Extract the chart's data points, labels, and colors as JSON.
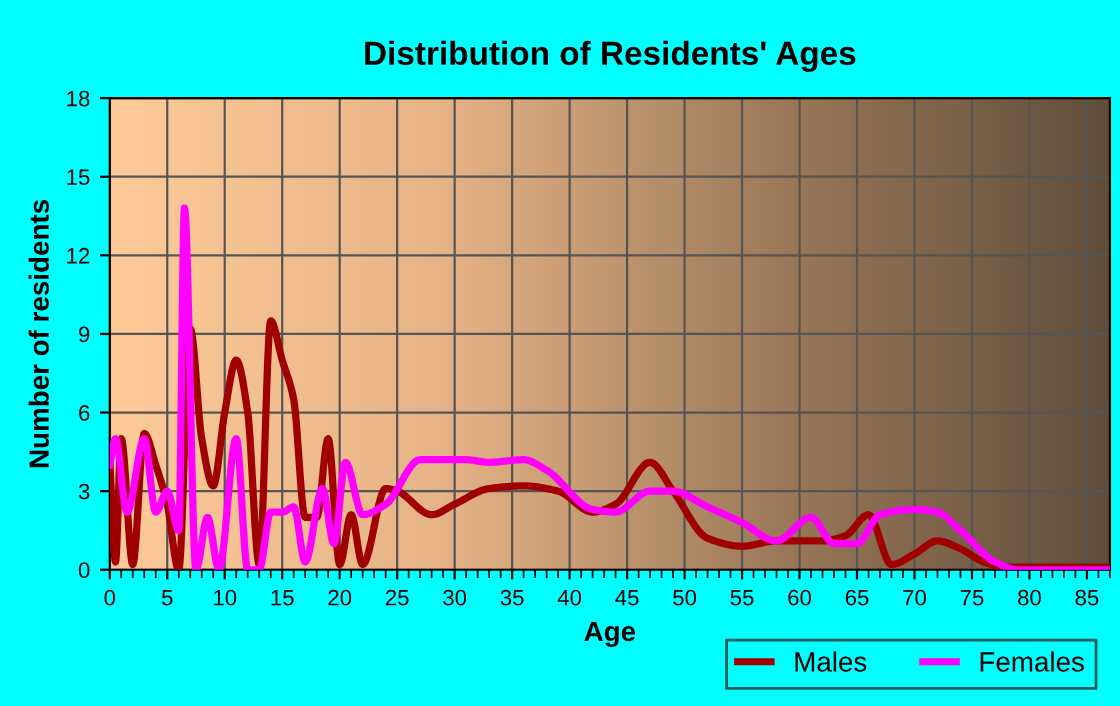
{
  "chart_data": {
    "type": "line",
    "title": "Distribution of Residents' Ages",
    "xlabel": "Age",
    "ylabel": "Number of residents",
    "xlim": [
      0,
      87
    ],
    "xticks": [
      0,
      5,
      10,
      15,
      20,
      25,
      30,
      35,
      40,
      45,
      50,
      55,
      60,
      65,
      70,
      75,
      80,
      85
    ],
    "ylim": [
      0,
      18
    ],
    "yticks": [
      0,
      3,
      6,
      9,
      12,
      15,
      18
    ],
    "grid": true,
    "legend": "bottom right",
    "line_style": "solid",
    "marker": "none",
    "series": [
      {
        "name": "Males",
        "color": "#a00000",
        "x": [
          0,
          0.5,
          1,
          2,
          3,
          4,
          5,
          6,
          7,
          8,
          9,
          10,
          11,
          12,
          13,
          14,
          15,
          16,
          17,
          18,
          19,
          20,
          21,
          22,
          24,
          25,
          28,
          30,
          33,
          36,
          39,
          42,
          44,
          47,
          49,
          52,
          55,
          58,
          62,
          64,
          66,
          68,
          70,
          72,
          74,
          76,
          78,
          87
        ],
        "values": [
          4.2,
          0.3,
          5,
          0.2,
          5.2,
          4,
          2.5,
          0,
          9.2,
          5,
          3.2,
          6,
          8,
          6,
          0.2,
          9.5,
          8,
          6.5,
          2,
          2,
          5,
          0.2,
          2.1,
          0.2,
          3.1,
          3,
          2.1,
          2.5,
          3.1,
          3.2,
          3,
          2.2,
          2.5,
          4.1,
          3,
          1.2,
          0.9,
          1.1,
          1.1,
          1.3,
          2.1,
          0.2,
          0.6,
          1.1,
          0.8,
          0.3,
          0.1,
          0.1
        ]
      },
      {
        "name": "Females",
        "color": "#ff00ff",
        "x": [
          0,
          0.5,
          1.5,
          3,
          4,
          5,
          6,
          6.5,
          7.5,
          8.5,
          9.5,
          11,
          12,
          13,
          14,
          15,
          16,
          17,
          18.5,
          19.5,
          20.5,
          22,
          24,
          27,
          31,
          33,
          36,
          38,
          42,
          44,
          47,
          49,
          52,
          55,
          58,
          61,
          63,
          65,
          67,
          70,
          72,
          74,
          77,
          79,
          87
        ],
        "values": [
          4,
          5,
          2.2,
          5,
          2.2,
          3,
          1.5,
          13.8,
          0,
          2,
          0,
          5,
          0,
          0,
          2.2,
          2.2,
          2.4,
          0.3,
          3.1,
          1,
          4.1,
          2.1,
          2.5,
          4.2,
          4.2,
          4.1,
          4.2,
          3.8,
          2.3,
          2.2,
          3,
          3,
          2.4,
          1.8,
          1.1,
          2,
          1,
          1,
          2.1,
          2.3,
          2.2,
          1.5,
          0.3,
          0,
          0
        ]
      }
    ]
  }
}
